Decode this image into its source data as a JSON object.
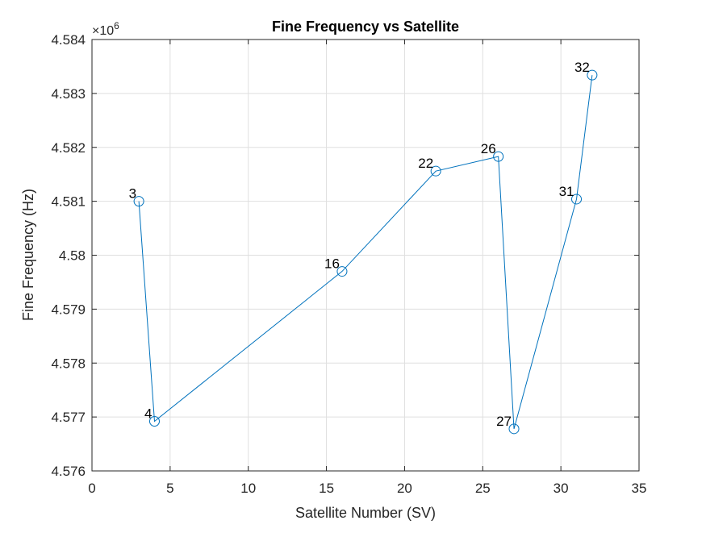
{
  "chart_data": {
    "type": "line",
    "title": "Fine Frequency vs Satellite",
    "xlabel": "Satellite Number (SV)",
    "ylabel": "Fine Frequency (Hz)",
    "exponent_label": "×10",
    "exponent_power": "6",
    "xlim": [
      0,
      35
    ],
    "ylim": [
      4.576,
      4.584
    ],
    "y_scale_factor": 1000000,
    "xticks": [
      0,
      5,
      10,
      15,
      20,
      25,
      30,
      35
    ],
    "xtick_labels": [
      "0",
      "5",
      "10",
      "15",
      "20",
      "25",
      "30",
      "35"
    ],
    "yticks": [
      4.576,
      4.577,
      4.578,
      4.579,
      4.58,
      4.581,
      4.582,
      4.583,
      4.584
    ],
    "ytick_labels": [
      "4.576",
      "4.577",
      "4.578",
      "4.579",
      "4.58",
      "4.581",
      "4.582",
      "4.583",
      "4.584"
    ],
    "grid": true,
    "marker": "circle",
    "series_color": "#0072BD",
    "points": [
      {
        "x": 3,
        "y": 4.581,
        "label": "3"
      },
      {
        "x": 4,
        "y": 4.57692,
        "label": "4"
      },
      {
        "x": 16,
        "y": 4.5797,
        "label": "16"
      },
      {
        "x": 22,
        "y": 4.58156,
        "label": "22"
      },
      {
        "x": 26,
        "y": 4.58183,
        "label": "26"
      },
      {
        "x": 27,
        "y": 4.57678,
        "label": "27"
      },
      {
        "x": 31,
        "y": 4.58104,
        "label": "31"
      },
      {
        "x": 32,
        "y": 4.58334,
        "label": "32"
      }
    ]
  }
}
